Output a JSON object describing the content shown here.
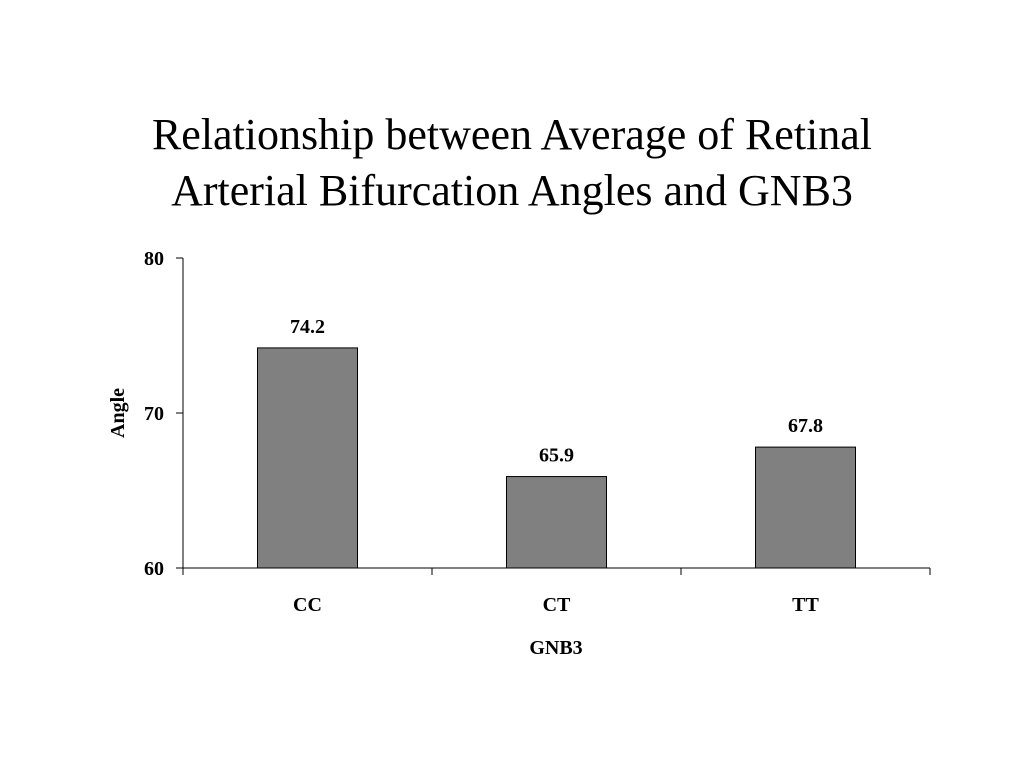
{
  "title_lines": [
    "Relationship between Average of Retinal",
    "Arterial Bifurcation Angles and GNB3"
  ],
  "colors": {
    "bar_fill": "#808080",
    "bar_stroke": "#000000",
    "axis": "#000000"
  },
  "chart_data": {
    "type": "bar",
    "title": "Relationship between Average of Retinal Arterial Bifurcation Angles and GNB3",
    "categories": [
      "CC",
      "CT",
      "TT"
    ],
    "values": [
      74.2,
      65.9,
      67.8
    ],
    "data_labels": [
      "74.2",
      "65.9",
      "67.8"
    ],
    "xlabel": "GNB3",
    "ylabel": "Angle",
    "ylim": [
      60,
      80
    ],
    "yticks": [
      60,
      70,
      80
    ],
    "grid": false,
    "legend": "none"
  }
}
